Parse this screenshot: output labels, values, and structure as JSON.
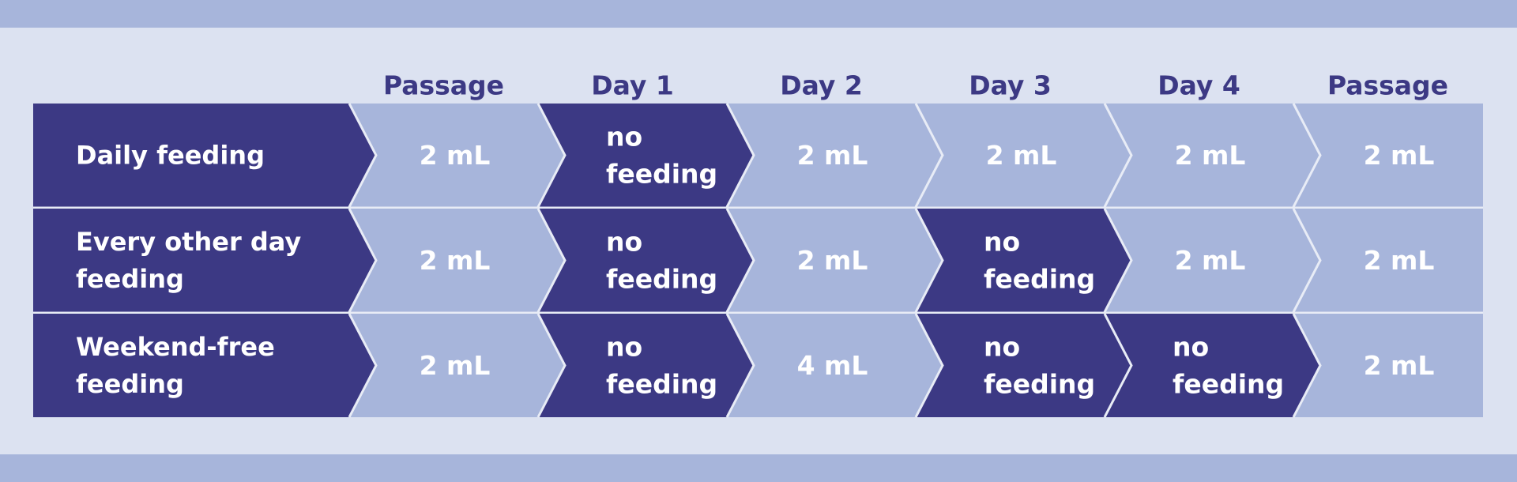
{
  "colors": {
    "dark": "#3c3984",
    "light": "#a7b5db",
    "background": "#dce2f1",
    "header_text": "#3c3984",
    "cell_text": "#ffffff",
    "separator": "#e8ecf6"
  },
  "columns": [
    "Passage",
    "Day 1",
    "Day 2",
    "Day 3",
    "Day 4",
    "Passage"
  ],
  "rows": [
    {
      "label": [
        "Daily feeding"
      ],
      "cells": [
        {
          "text": [
            "2 mL"
          ],
          "feeding": true
        },
        {
          "text": [
            "no",
            "feeding"
          ],
          "feeding": false
        },
        {
          "text": [
            "2 mL"
          ],
          "feeding": true
        },
        {
          "text": [
            "2 mL"
          ],
          "feeding": true
        },
        {
          "text": [
            "2 mL"
          ],
          "feeding": true
        },
        {
          "text": [
            "2 mL"
          ],
          "feeding": true
        }
      ]
    },
    {
      "label": [
        "Every other day",
        "feeding"
      ],
      "cells": [
        {
          "text": [
            "2 mL"
          ],
          "feeding": true
        },
        {
          "text": [
            "no",
            "feeding"
          ],
          "feeding": false
        },
        {
          "text": [
            "2 mL"
          ],
          "feeding": true
        },
        {
          "text": [
            "no",
            "feeding"
          ],
          "feeding": false
        },
        {
          "text": [
            "2 mL"
          ],
          "feeding": true
        },
        {
          "text": [
            "2 mL"
          ],
          "feeding": true
        }
      ]
    },
    {
      "label": [
        "Weekend-free",
        "feeding"
      ],
      "cells": [
        {
          "text": [
            "2 mL"
          ],
          "feeding": true
        },
        {
          "text": [
            "no",
            "feeding"
          ],
          "feeding": false
        },
        {
          "text": [
            "4 mL"
          ],
          "feeding": true
        },
        {
          "text": [
            "no",
            "feeding"
          ],
          "feeding": false
        },
        {
          "text": [
            "no",
            "feeding"
          ],
          "feeding": false
        },
        {
          "text": [
            "2 mL"
          ],
          "feeding": true
        }
      ]
    }
  ]
}
